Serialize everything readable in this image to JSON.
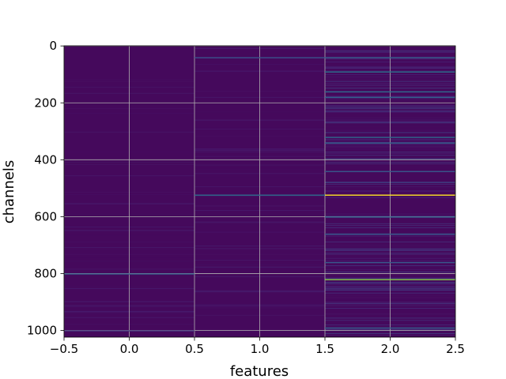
{
  "chart_data": {
    "type": "heatmap",
    "title": "",
    "xlabel": "features",
    "ylabel": "channels",
    "xlim": [
      -0.5,
      2.5
    ],
    "ylim": [
      1023.5,
      -0.5
    ],
    "n_columns": 3,
    "n_rows": 1024,
    "colormap": "viridis",
    "grid": true,
    "x_ticks": [
      -0.5,
      0.0,
      0.5,
      1.0,
      1.5,
      2.0,
      2.5
    ],
    "x_tick_labels": [
      "−0.5",
      "0.0",
      "0.5",
      "1.0",
      "1.5",
      "2.0",
      "2.5"
    ],
    "y_ticks": [
      0,
      200,
      400,
      600,
      800,
      1000
    ],
    "y_tick_labels": [
      "0",
      "200",
      "400",
      "600",
      "800",
      "1000"
    ],
    "background_value": 0.03,
    "bright_lines": [
      {
        "column": 2,
        "channel": 523,
        "value": 1.0
      },
      {
        "column": 2,
        "channel": 820,
        "value": 0.82
      },
      {
        "column": 1,
        "channel": 523,
        "value": 0.35
      },
      {
        "column": 1,
        "channel": 40,
        "value": 0.25
      },
      {
        "column": 0,
        "channel": 800,
        "value": 0.3
      },
      {
        "column": 0,
        "channel": 1000,
        "value": 0.18
      },
      {
        "column": 2,
        "channel": 40,
        "value": 0.3
      },
      {
        "column": 2,
        "channel": 90,
        "value": 0.38
      },
      {
        "column": 2,
        "channel": 160,
        "value": 0.35
      },
      {
        "column": 2,
        "channel": 180,
        "value": 0.3
      },
      {
        "column": 2,
        "channel": 320,
        "value": 0.35
      },
      {
        "column": 2,
        "channel": 340,
        "value": 0.3
      },
      {
        "column": 2,
        "channel": 440,
        "value": 0.28
      },
      {
        "column": 2,
        "channel": 600,
        "value": 0.32
      },
      {
        "column": 2,
        "channel": 660,
        "value": 0.28
      },
      {
        "column": 2,
        "channel": 760,
        "value": 0.28
      },
      {
        "column": 2,
        "channel": 990,
        "value": 0.3
      }
    ]
  }
}
